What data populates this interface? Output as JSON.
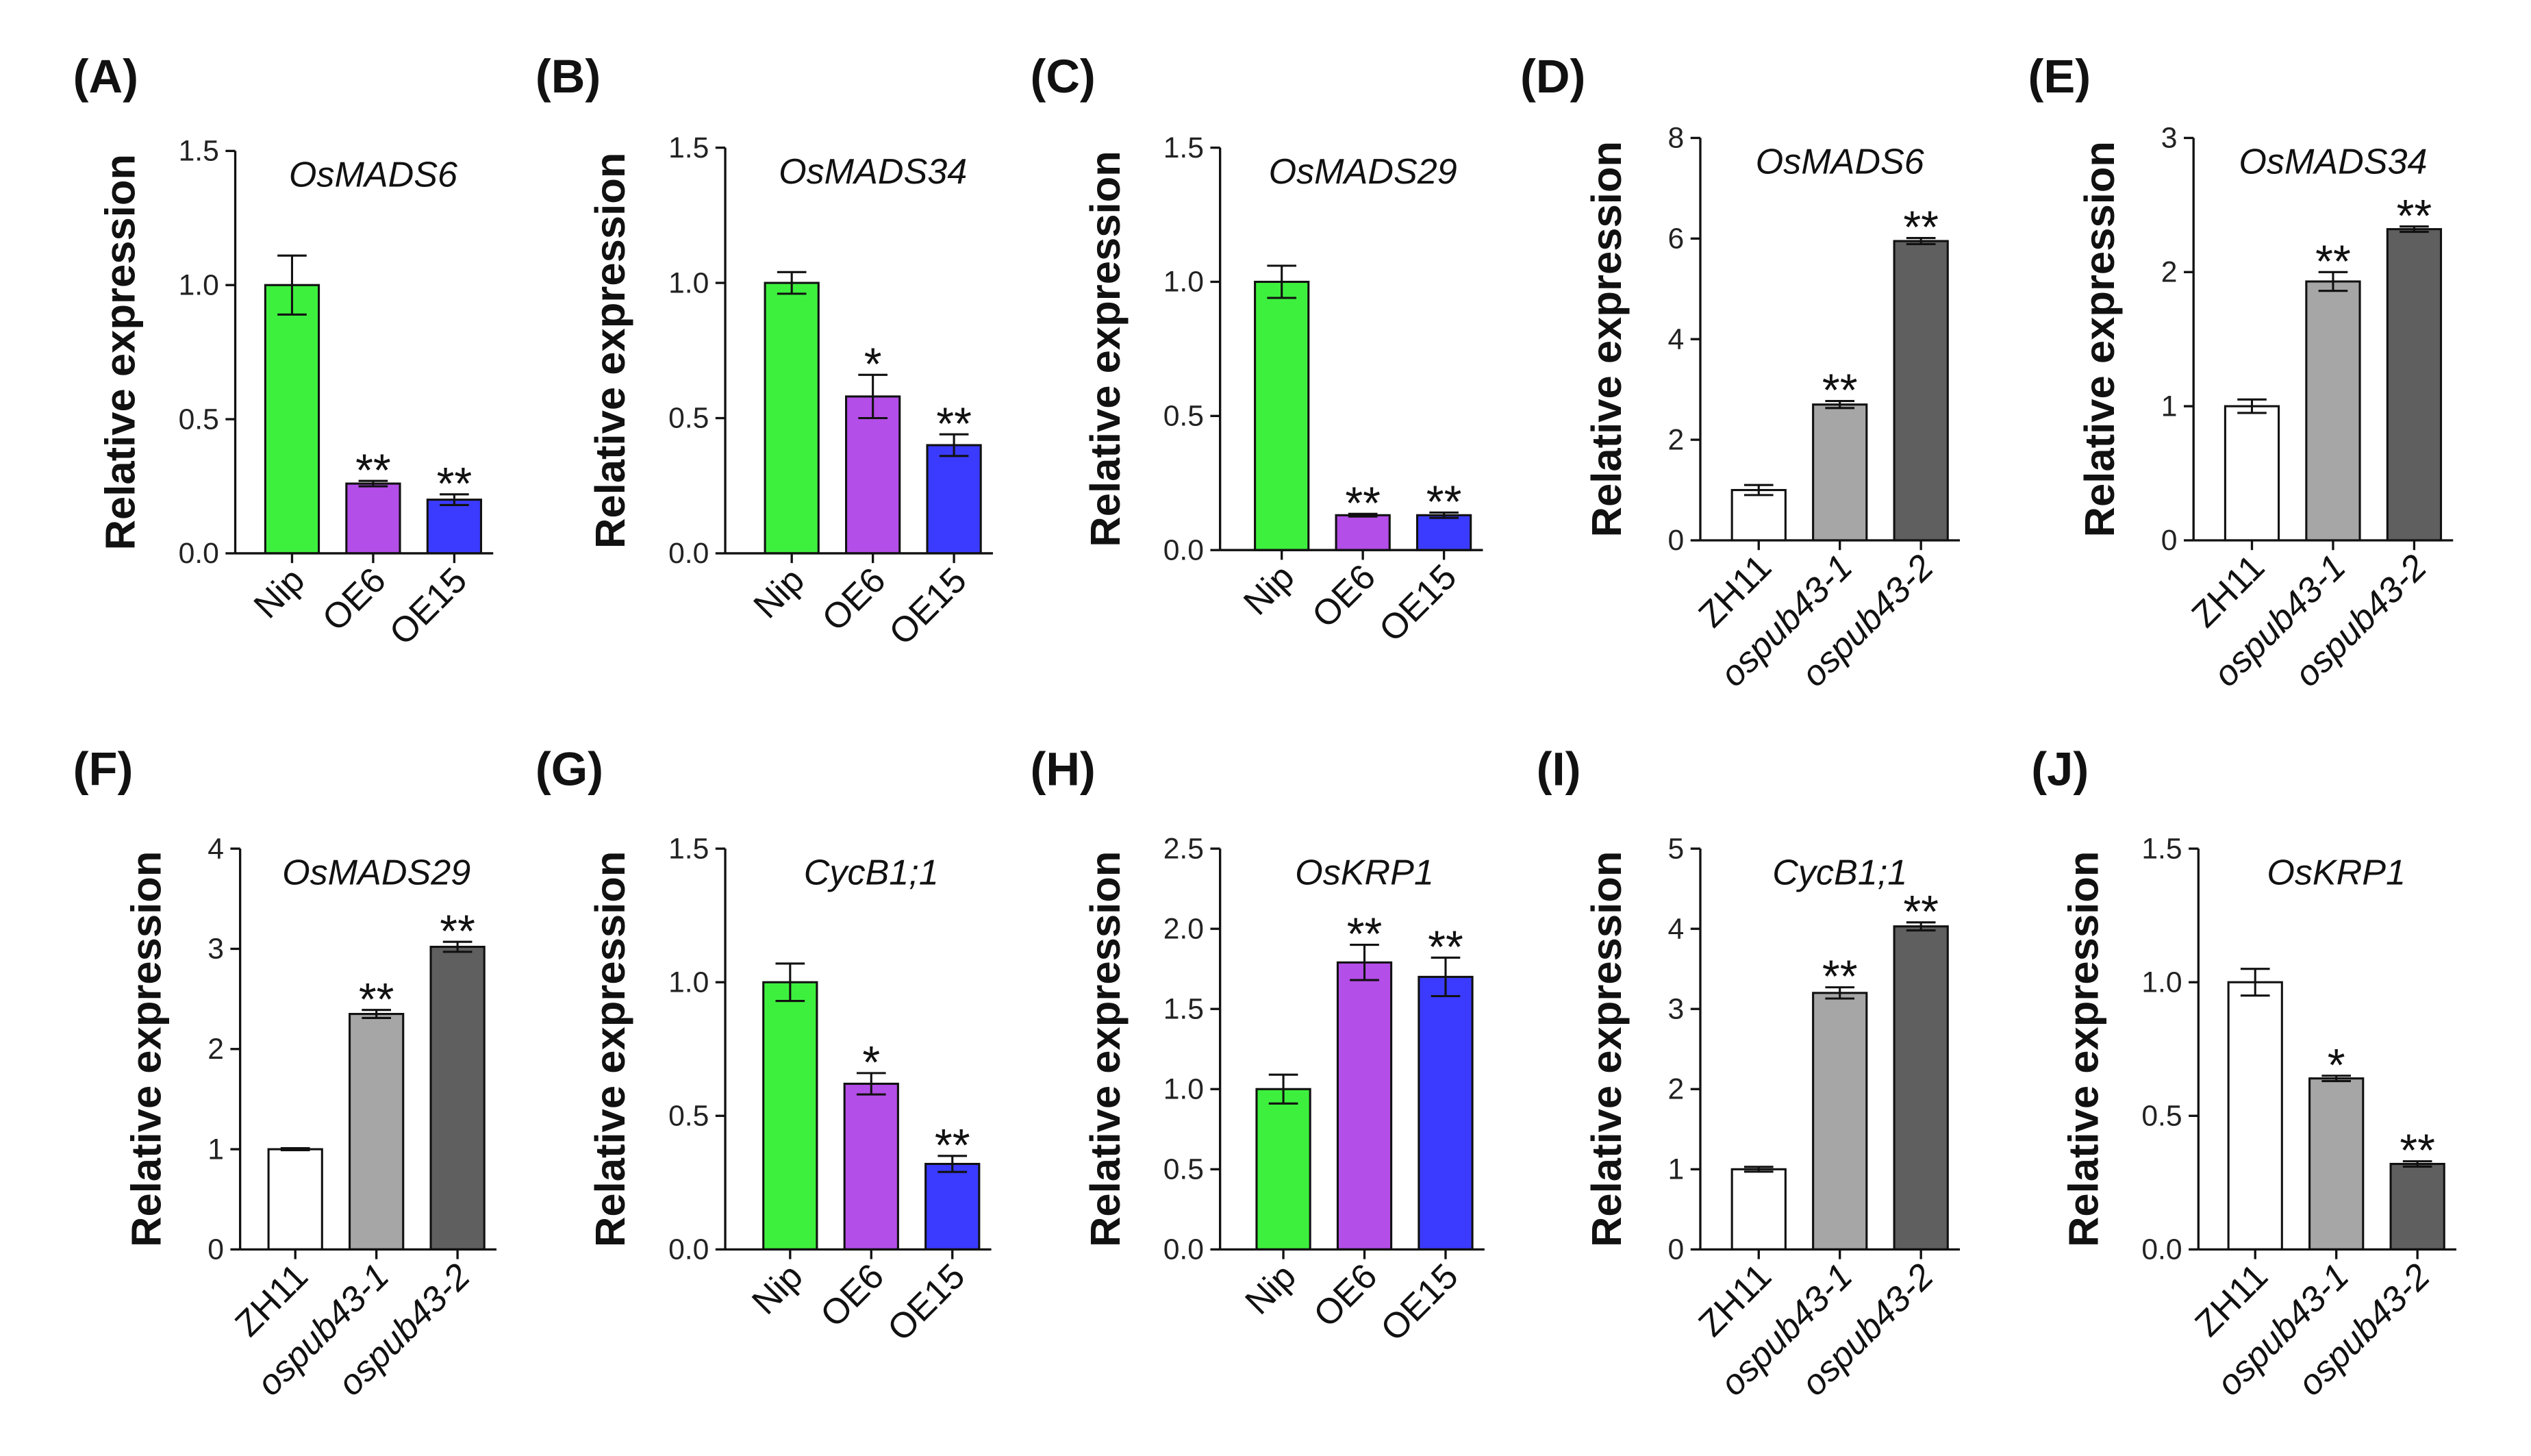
{
  "chart_data": [
    {
      "type": "bar",
      "panel": "(A)",
      "title": "OsMADS6",
      "ylabel": "Relative expression",
      "categories": [
        "Nip",
        "OE6",
        "OE15"
      ],
      "values": [
        1.0,
        0.26,
        0.2
      ],
      "errors": [
        0.11,
        0.01,
        0.02
      ],
      "significance": [
        null,
        "**",
        "**"
      ],
      "ylim": [
        0,
        1.5
      ],
      "yticks": [
        "0.0",
        "0.5",
        "1.0",
        "1.5"
      ],
      "colors": [
        "#3ef03e",
        "#b44ee8",
        "#3b3bff"
      ]
    },
    {
      "type": "bar",
      "panel": "(B)",
      "title": "OsMADS34",
      "ylabel": "Relative expression",
      "categories": [
        "Nip",
        "OE6",
        "OE15"
      ],
      "values": [
        1.0,
        0.58,
        0.4
      ],
      "errors": [
        0.04,
        0.08,
        0.04
      ],
      "significance": [
        null,
        "*",
        "**"
      ],
      "ylim": [
        0,
        1.5
      ],
      "yticks": [
        "0.0",
        "0.5",
        "1.0",
        "1.5"
      ],
      "colors": [
        "#3ef03e",
        "#b44ee8",
        "#3b3bff"
      ]
    },
    {
      "type": "bar",
      "panel": "(C)",
      "title": "OsMADS29",
      "ylabel": "Relative expression",
      "categories": [
        "Nip",
        "OE6",
        "OE15"
      ],
      "values": [
        1.0,
        0.13,
        0.13
      ],
      "errors": [
        0.06,
        0.005,
        0.01
      ],
      "significance": [
        null,
        "**",
        "**"
      ],
      "ylim": [
        0,
        1.5
      ],
      "yticks": [
        "0.0",
        "0.5",
        "1.0",
        "1.5"
      ],
      "colors": [
        "#3ef03e",
        "#b44ee8",
        "#3b3bff"
      ]
    },
    {
      "type": "bar",
      "panel": "(D)",
      "title": "OsMADS6",
      "ylabel": "Relative expression",
      "categories": [
        "ZH11",
        "ospub43-1",
        "ospub43-2"
      ],
      "values": [
        1.0,
        2.7,
        5.95
      ],
      "errors": [
        0.1,
        0.07,
        0.06
      ],
      "significance": [
        null,
        "**",
        "**"
      ],
      "ylim": [
        0,
        8
      ],
      "yticks": [
        "0",
        "2",
        "4",
        "6",
        "8"
      ],
      "colors": [
        "#ffffff",
        "#a6a6a6",
        "#5f5f5f"
      ]
    },
    {
      "type": "bar",
      "panel": "(E)",
      "title": "OsMADS34",
      "ylabel": "Relative expression",
      "categories": [
        "ZH11",
        "ospub43-1",
        "ospub43-2"
      ],
      "values": [
        1.0,
        1.93,
        2.32
      ],
      "errors": [
        0.05,
        0.07,
        0.02
      ],
      "significance": [
        null,
        "**",
        "**"
      ],
      "ylim": [
        0,
        3
      ],
      "yticks": [
        "0",
        "1",
        "2",
        "3"
      ],
      "colors": [
        "#ffffff",
        "#a6a6a6",
        "#5f5f5f"
      ]
    },
    {
      "type": "bar",
      "panel": "(F)",
      "title": "OsMADS29",
      "ylabel": "Relative expression",
      "categories": [
        "ZH11",
        "ospub43-1",
        "ospub43-2"
      ],
      "values": [
        1.0,
        2.35,
        3.02
      ],
      "errors": [
        0.01,
        0.04,
        0.05
      ],
      "significance": [
        null,
        "**",
        "**"
      ],
      "ylim": [
        0,
        4
      ],
      "yticks": [
        "0",
        "1",
        "2",
        "3",
        "4"
      ],
      "colors": [
        "#ffffff",
        "#a6a6a6",
        "#5f5f5f"
      ]
    },
    {
      "type": "bar",
      "panel": "(G)",
      "title": "CycB1;1",
      "ylabel": "Relative expression",
      "categories": [
        "Nip",
        "OE6",
        "OE15"
      ],
      "values": [
        1.0,
        0.62,
        0.32
      ],
      "errors": [
        0.07,
        0.04,
        0.03
      ],
      "significance": [
        null,
        "*",
        "**"
      ],
      "ylim": [
        0,
        1.5
      ],
      "yticks": [
        "0.0",
        "0.5",
        "1.0",
        "1.5"
      ],
      "colors": [
        "#3ef03e",
        "#b44ee8",
        "#3b3bff"
      ]
    },
    {
      "type": "bar",
      "panel": "(H)",
      "title": "OsKRP1",
      "ylabel": "Relative expression",
      "categories": [
        "Nip",
        "OE6",
        "OE15"
      ],
      "values": [
        1.0,
        1.79,
        1.7
      ],
      "errors": [
        0.09,
        0.11,
        0.12
      ],
      "significance": [
        null,
        "**",
        "**"
      ],
      "ylim": [
        0,
        2.5
      ],
      "yticks": [
        "0.0",
        "0.5",
        "1.0",
        "1.5",
        "2.0",
        "2.5"
      ],
      "colors": [
        "#3ef03e",
        "#b44ee8",
        "#3b3bff"
      ]
    },
    {
      "type": "bar",
      "panel": "(I)",
      "title": "CycB1;1",
      "ylabel": "Relative expression",
      "categories": [
        "ZH11",
        "ospub43-1",
        "ospub43-2"
      ],
      "values": [
        1.0,
        3.2,
        4.03
      ],
      "errors": [
        0.03,
        0.07,
        0.05
      ],
      "significance": [
        null,
        "**",
        "**"
      ],
      "ylim": [
        0,
        5
      ],
      "yticks": [
        "0",
        "1",
        "2",
        "3",
        "4",
        "5"
      ],
      "colors": [
        "#ffffff",
        "#a6a6a6",
        "#5f5f5f"
      ]
    },
    {
      "type": "bar",
      "panel": "(J)",
      "title": "OsKRP1",
      "ylabel": "Relative expression",
      "categories": [
        "ZH11",
        "ospub43-1",
        "ospub43-2"
      ],
      "values": [
        1.0,
        0.64,
        0.32
      ],
      "errors": [
        0.05,
        0.01,
        0.01
      ],
      "significance": [
        null,
        "*",
        "**"
      ],
      "ylim": [
        0,
        1.5
      ],
      "yticks": [
        "0.0",
        "0.5",
        "1.0",
        "1.5"
      ],
      "colors": [
        "#ffffff",
        "#a6a6a6",
        "#5f5f5f"
      ]
    }
  ]
}
